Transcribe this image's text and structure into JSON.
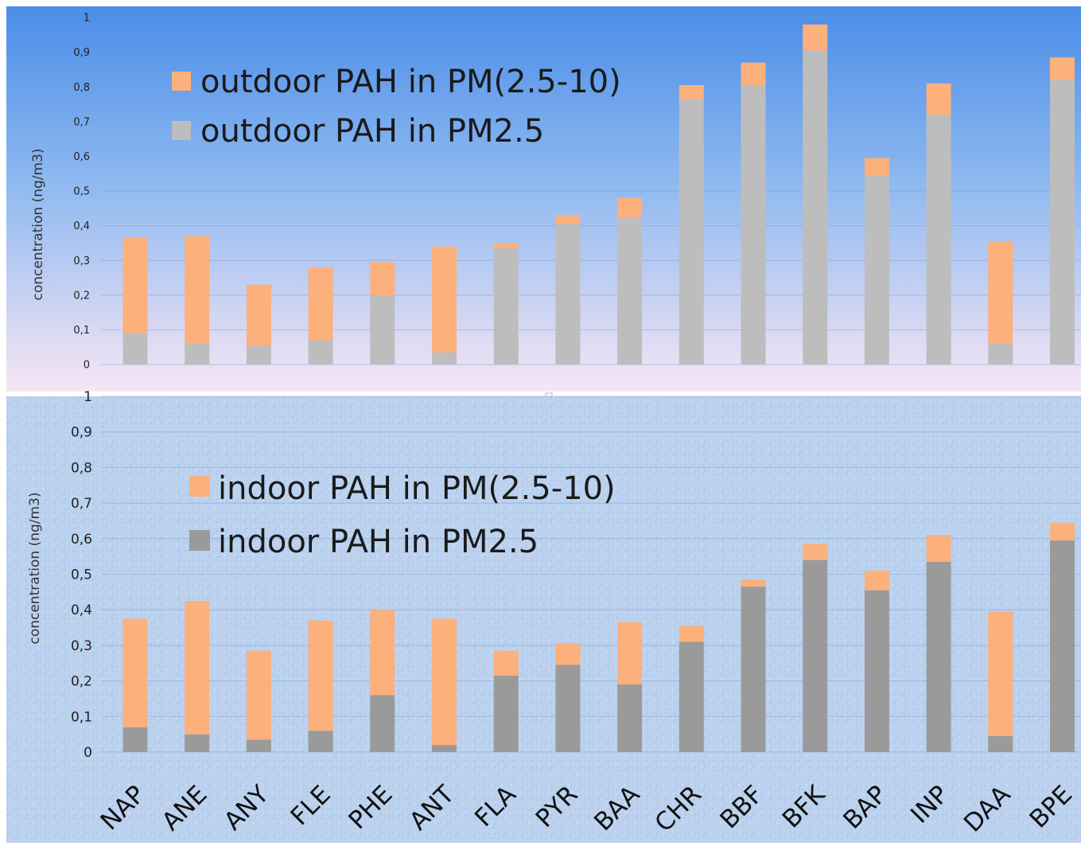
{
  "colors": {
    "pm25_10_orange": "#FCB07C",
    "pm25_grey_outdoor": "#BDBDBD",
    "pm25_grey_indoor": "#9A9A9A",
    "top_bg_top": "#4A8DE8",
    "top_bg_bottom": "#F6E6F4",
    "bottom_bg": "#BBD3EF",
    "gridline": "#7FA2D8"
  },
  "chart_data": [
    {
      "type": "bar",
      "stacked": true,
      "title": "",
      "xlabel": "",
      "ylabel": "concentration (ng/m3)",
      "ylim": [
        0,
        1
      ],
      "yticks": [
        "0",
        "0,1",
        "0,2",
        "0,3",
        "0,4",
        "0,5",
        "0,6",
        "0,7",
        "0,8",
        "0,9",
        "1"
      ],
      "grid": true,
      "legend_position": "top-left",
      "categories": [
        "NAP",
        "ANE",
        "ANY",
        "FLE",
        "PHE",
        "ANT",
        "FLA",
        "PYR",
        "BAA",
        "CHR",
        "BBF",
        "BFK",
        "BAP",
        "INP",
        "DAA",
        "BPE"
      ],
      "series": [
        {
          "name": "outdoor PAH in PM2.5",
          "color": "#BDBDBD",
          "values": [
            0.09,
            0.06,
            0.055,
            0.07,
            0.2,
            0.035,
            0.335,
            0.405,
            0.425,
            0.765,
            0.805,
            0.905,
            0.545,
            0.72,
            0.06,
            0.82
          ]
        },
        {
          "name": "outdoor PAH in PM(2.5-10)",
          "color": "#FCB07C",
          "values": [
            0.275,
            0.31,
            0.175,
            0.21,
            0.095,
            0.305,
            0.015,
            0.025,
            0.055,
            0.04,
            0.065,
            0.075,
            0.05,
            0.09,
            0.295,
            0.065
          ]
        }
      ],
      "legend": [
        "outdoor PAH in PM(2.5-10)",
        "outdoor PAH in PM2.5"
      ]
    },
    {
      "type": "bar",
      "stacked": true,
      "title": "",
      "xlabel": "",
      "ylabel": "concentration (ng/m3)",
      "ylim": [
        0,
        1
      ],
      "yticks": [
        "0",
        "0,1",
        "0,2",
        "0,3",
        "0,4",
        "0,5",
        "0,6",
        "0,7",
        "0,8",
        "0,9",
        "1"
      ],
      "grid": true,
      "legend_position": "top-left",
      "categories": [
        "NAP",
        "ANE",
        "ANY",
        "FLE",
        "PHE",
        "ANT",
        "FLA",
        "PYR",
        "BAA",
        "CHR",
        "BBF",
        "BFK",
        "BAP",
        "INP",
        "DAA",
        "BPE"
      ],
      "series": [
        {
          "name": "indoor PAH in PM2.5",
          "color": "#9A9A9A",
          "values": [
            0.07,
            0.05,
            0.035,
            0.06,
            0.16,
            0.02,
            0.215,
            0.245,
            0.19,
            0.31,
            0.465,
            0.54,
            0.455,
            0.535,
            0.045,
            0.595
          ]
        },
        {
          "name": "indoor PAH in PM(2.5-10)",
          "color": "#FCB07C",
          "values": [
            0.305,
            0.375,
            0.25,
            0.31,
            0.24,
            0.355,
            0.07,
            0.06,
            0.175,
            0.045,
            0.02,
            0.045,
            0.055,
            0.075,
            0.35,
            0.05
          ]
        }
      ],
      "legend": [
        "indoor PAH in PM(2.5-10)",
        "indoor PAH in PM2.5"
      ]
    }
  ]
}
